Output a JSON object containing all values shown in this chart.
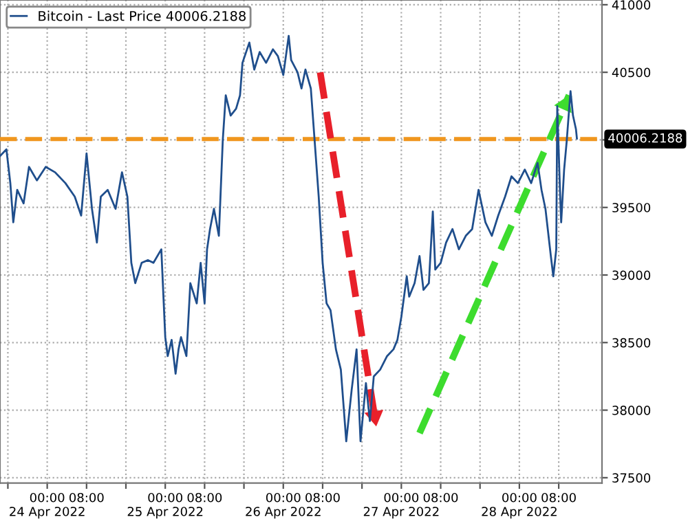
{
  "chart_data": {
    "type": "line",
    "xlim": [
      "2022-04-23T14:24",
      "2022-04-28T16:48"
    ],
    "ylim": [
      37460,
      41035
    ],
    "xticks": [
      {
        "value": "2022-04-23T16:00",
        "label": null
      },
      {
        "value": "2022-04-24T00:00",
        "label": "00:00\n24 Apr 2022"
      },
      {
        "value": "2022-04-24T08:00",
        "label": "08:00"
      },
      {
        "value": "2022-04-24T16:00",
        "label": null
      },
      {
        "value": "2022-04-25T00:00",
        "label": "00:00\n25 Apr 2022"
      },
      {
        "value": "2022-04-25T08:00",
        "label": "08:00"
      },
      {
        "value": "2022-04-25T16:00",
        "label": null
      },
      {
        "value": "2022-04-26T00:00",
        "label": "00:00\n26 Apr 2022"
      },
      {
        "value": "2022-04-26T08:00",
        "label": "08:00"
      },
      {
        "value": "2022-04-26T16:00",
        "label": null
      },
      {
        "value": "2022-04-27T00:00",
        "label": "00:00\n27 Apr 2022"
      },
      {
        "value": "2022-04-27T08:00",
        "label": "08:00"
      },
      {
        "value": "2022-04-27T16:00",
        "label": null
      },
      {
        "value": "2022-04-28T00:00",
        "label": "00:00\n28 Apr 2022"
      },
      {
        "value": "2022-04-28T08:00",
        "label": "08:00"
      }
    ],
    "yticks": [
      37500,
      38000,
      38500,
      39000,
      39500,
      {
        "value": 40000,
        "label": null
      },
      40500,
      41000
    ],
    "grid": true,
    "legend": "top left",
    "marker": "none",
    "ref_lines": [
      {
        "axis": "y",
        "value": 40006.2188,
        "label": "40006.2188",
        "color": "#f0961e",
        "line_style": "dashed"
      }
    ],
    "series": [
      {
        "name": "Bitcoin - Last Price 40006.2188",
        "color": "#1f4e8c",
        "line_style": "solid",
        "x": [
          "2022-04-23T14:24",
          "2022-04-23T15:42",
          "2022-04-23T16:30",
          "2022-04-23T17:06",
          "2022-04-23T17:54",
          "2022-04-23T19:12",
          "2022-04-23T20:18",
          "2022-04-23T21:54",
          "2022-04-23T23:42",
          "2022-04-24T01:36",
          "2022-04-24T03:42",
          "2022-04-24T05:36",
          "2022-04-24T06:54",
          "2022-04-24T08:00",
          "2022-04-24T09:06",
          "2022-04-24T10:06",
          "2022-04-24T10:54",
          "2022-04-24T12:18",
          "2022-04-24T13:54",
          "2022-04-24T15:12",
          "2022-04-24T16:18",
          "2022-04-24T17:06",
          "2022-04-24T17:54",
          "2022-04-24T19:12",
          "2022-04-24T20:30",
          "2022-04-24T21:36",
          "2022-04-24T23:12",
          "2022-04-25T00:00",
          "2022-04-25T00:30",
          "2022-04-25T01:18",
          "2022-04-25T02:06",
          "2022-04-25T02:42",
          "2022-04-25T03:12",
          "2022-04-25T04:18",
          "2022-04-25T05:06",
          "2022-04-25T06:24",
          "2022-04-25T07:12",
          "2022-04-25T08:00",
          "2022-04-25T08:30",
          "2022-04-25T09:06",
          "2022-04-25T09:54",
          "2022-04-25T10:54",
          "2022-04-25T11:42",
          "2022-04-25T12:18",
          "2022-04-25T13:18",
          "2022-04-25T14:24",
          "2022-04-25T15:12",
          "2022-04-25T15:42",
          "2022-04-25T17:06",
          "2022-04-25T18:06",
          "2022-04-25T19:12",
          "2022-04-25T20:30",
          "2022-04-25T21:54",
          "2022-04-25T22:54",
          "2022-04-26T00:00",
          "2022-04-26T01:06",
          "2022-04-26T01:36",
          "2022-04-26T02:54",
          "2022-04-26T03:42",
          "2022-04-26T04:30",
          "2022-04-26T05:36",
          "2022-04-26T06:24",
          "2022-04-26T07:12",
          "2022-04-26T08:00",
          "2022-04-26T08:48",
          "2022-04-26T09:36",
          "2022-04-26T10:42",
          "2022-04-26T11:42",
          "2022-04-26T12:48",
          "2022-04-26T13:54",
          "2022-04-26T14:54",
          "2022-04-26T15:42",
          "2022-04-26T16:48",
          "2022-04-26T17:36",
          "2022-04-26T18:24",
          "2022-04-26T19:42",
          "2022-04-26T21:06",
          "2022-04-26T22:24",
          "2022-04-26T23:12",
          "2022-04-27T00:00",
          "2022-04-27T01:06",
          "2022-04-27T01:36",
          "2022-04-27T02:42",
          "2022-04-27T03:42",
          "2022-04-27T04:30",
          "2022-04-27T05:36",
          "2022-04-27T06:24",
          "2022-04-27T06:54",
          "2022-04-27T08:00",
          "2022-04-27T09:06",
          "2022-04-27T10:24",
          "2022-04-27T11:42",
          "2022-04-27T13:06",
          "2022-04-27T14:24",
          "2022-04-27T15:42",
          "2022-04-27T17:06",
          "2022-04-27T18:24",
          "2022-04-27T19:42",
          "2022-04-27T21:06",
          "2022-04-27T22:24",
          "2022-04-27T23:42",
          "2022-04-28T01:06",
          "2022-04-28T02:24",
          "2022-04-28T03:42",
          "2022-04-28T04:30",
          "2022-04-28T05:18",
          "2022-04-28T06:24",
          "2022-04-28T06:54",
          "2022-04-28T07:30",
          "2022-04-28T07:42",
          "2022-04-28T08:18",
          "2022-04-28T08:30",
          "2022-04-28T09:06",
          "2022-04-28T09:36",
          "2022-04-28T10:24",
          "2022-04-28T10:54",
          "2022-04-28T11:30",
          "2022-04-28T11:42"
        ],
        "values": [
          39880,
          39930,
          39680,
          39390,
          39630,
          39530,
          39800,
          39700,
          39800,
          39760,
          39680,
          39580,
          39440,
          39900,
          39490,
          39240,
          39580,
          39630,
          39490,
          39760,
          39580,
          39090,
          38940,
          39090,
          39110,
          39090,
          39190,
          38540,
          38400,
          38520,
          38270,
          38450,
          38540,
          38400,
          38940,
          38790,
          39090,
          38790,
          39190,
          39340,
          39490,
          39290,
          40000,
          40330,
          40180,
          40230,
          40330,
          40570,
          40720,
          40520,
          40650,
          40570,
          40670,
          40620,
          40480,
          40770,
          40590,
          40500,
          40380,
          40520,
          40380,
          39980,
          39580,
          39090,
          38790,
          38740,
          38450,
          38300,
          37770,
          38150,
          38450,
          37770,
          38200,
          37920,
          38250,
          38300,
          38400,
          38450,
          38520,
          38690,
          38990,
          38840,
          38940,
          39140,
          38890,
          38940,
          39470,
          39040,
          39090,
          39240,
          39340,
          39190,
          39290,
          39340,
          39630,
          39390,
          39290,
          39440,
          39580,
          39730,
          39680,
          39780,
          39680,
          39830,
          39630,
          39490,
          39140,
          38990,
          39190,
          40250,
          39580,
          39390,
          39780,
          39980,
          40360,
          40180,
          40080,
          40010
        ]
      },
      {
        "color": "#e8202a",
        "line_style": "dashed",
        "x": [
          "2022-04-26T07:30",
          "2022-04-26T18:54"
        ],
        "values": [
          40500,
          37880
        ]
      },
      {
        "color": "#3ddc2e",
        "line_style": "dashed",
        "x": [
          "2022-04-27T03:42",
          "2022-04-28T10:06"
        ],
        "values": [
          37830,
          40330
        ]
      }
    ]
  }
}
